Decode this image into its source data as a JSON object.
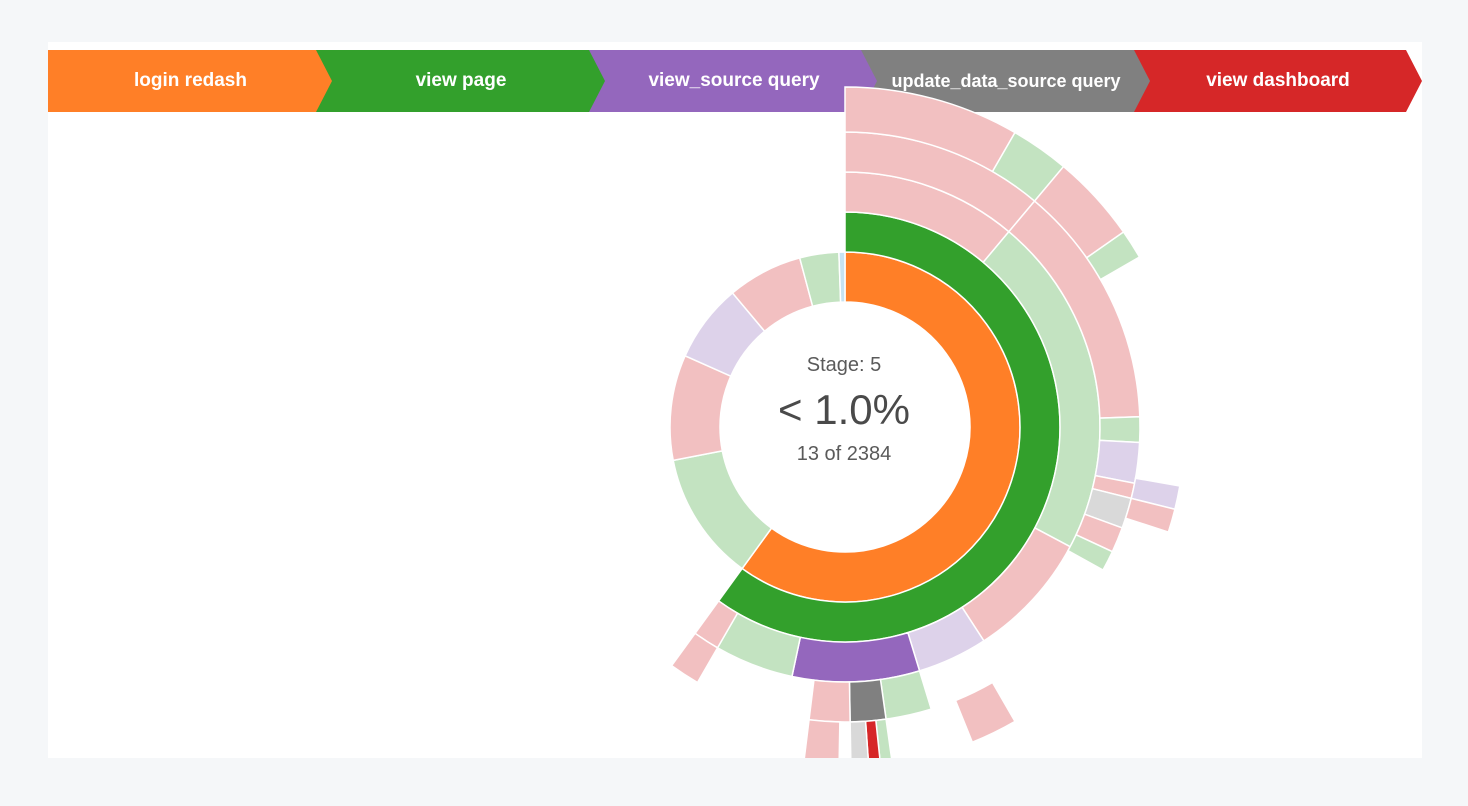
{
  "breadcrumb": {
    "steps": [
      {
        "label": "login redash",
        "color": "#ff7f27"
      },
      {
        "label": "view page",
        "color": "#33a02c"
      },
      {
        "label": "view_source query",
        "color": "#9467bd"
      },
      {
        "label": "update_data_source query",
        "color": "#808080"
      },
      {
        "label": "view dashboard",
        "color": "#d62728"
      }
    ]
  },
  "center": {
    "stage_text": "Stage: 5",
    "percent_text": "< 1.0%",
    "count_text": "13 of 2384"
  },
  "chart_data": {
    "type": "sunburst",
    "title": "",
    "total_sequences": 2384,
    "highlighted_sequence_count": 13,
    "highlighted_stage": 5,
    "highlighted_sequence": [
      "login redash",
      "view page",
      "view_source query",
      "update_data_source query",
      "view dashboard"
    ],
    "event_colors": {
      "login redash": "#ff7f27",
      "view page": "#33a02c",
      "view_source query": "#9467bd",
      "update_data_source query": "#808080",
      "view dashboard": "#d62728"
    },
    "dimmed_colors": {
      "red": "#f2c0c1",
      "green": "#c3e3c1",
      "purple": "#ddd2ea",
      "gray": "#d9d9d9",
      "pink": "#f4d3e8",
      "orange": "#fdd8b5",
      "blue": "#c6e3f2"
    },
    "rings": [
      {
        "depth": 1,
        "segments": [
          {
            "start": 0,
            "end": 216,
            "tone": "orange",
            "active": true
          },
          {
            "start": 216,
            "end": 259,
            "tone": "green"
          },
          {
            "start": 259,
            "end": 294,
            "tone": "red"
          },
          {
            "start": 294,
            "end": 320,
            "tone": "purple"
          },
          {
            "start": 320,
            "end": 345,
            "tone": "red"
          },
          {
            "start": 345,
            "end": 358,
            "tone": "green"
          },
          {
            "start": 358,
            "end": 360,
            "tone": "blue"
          }
        ]
      },
      {
        "depth": 2,
        "segments": [
          {
            "start": 0,
            "end": 216,
            "tone": "green",
            "active": true
          }
        ]
      },
      {
        "depth": 3,
        "segments": [
          {
            "start": 0,
            "end": 40,
            "tone": "red"
          },
          {
            "start": 40,
            "end": 118,
            "tone": "green"
          },
          {
            "start": 118,
            "end": 147,
            "tone": "red"
          },
          {
            "start": 147,
            "end": 163,
            "tone": "purple"
          },
          {
            "start": 163,
            "end": 192,
            "tone": "purple",
            "active": true
          },
          {
            "start": 192,
            "end": 210,
            "tone": "green"
          },
          {
            "start": 210,
            "end": 216,
            "tone": "red"
          }
        ]
      },
      {
        "depth": 4,
        "segments": [
          {
            "start": 0,
            "end": 40,
            "tone": "red"
          },
          {
            "start": 40,
            "end": 88,
            "tone": "red"
          },
          {
            "start": 88,
            "end": 93,
            "tone": "green"
          },
          {
            "start": 93,
            "end": 101,
            "tone": "purple"
          },
          {
            "start": 101,
            "end": 104,
            "tone": "red"
          },
          {
            "start": 104,
            "end": 110,
            "tone": "gray"
          },
          {
            "start": 110,
            "end": 115,
            "tone": "red"
          },
          {
            "start": 115,
            "end": 119,
            "tone": "green"
          },
          {
            "start": 163,
            "end": 172,
            "tone": "green"
          },
          {
            "start": 172,
            "end": 179,
            "tone": "gray",
            "active": true
          },
          {
            "start": 179,
            "end": 187,
            "tone": "red"
          },
          {
            "start": 210,
            "end": 216,
            "tone": "red"
          }
        ]
      },
      {
        "depth": 5,
        "segments": [
          {
            "start": 0,
            "end": 30,
            "tone": "red"
          },
          {
            "start": 30,
            "end": 40,
            "tone": "green"
          },
          {
            "start": 40,
            "end": 55,
            "tone": "red"
          },
          {
            "start": 55,
            "end": 60,
            "tone": "green"
          },
          {
            "start": 100,
            "end": 104,
            "tone": "purple"
          },
          {
            "start": 104,
            "end": 108,
            "tone": "red"
          },
          {
            "start": 150,
            "end": 158,
            "tone": "red"
          },
          {
            "start": 172,
            "end": 174,
            "tone": "green"
          },
          {
            "start": 174,
            "end": 176,
            "tone": "red",
            "active": true
          },
          {
            "start": 176,
            "end": 179,
            "tone": "gray"
          },
          {
            "start": 181,
            "end": 187,
            "tone": "red"
          }
        ]
      }
    ]
  }
}
